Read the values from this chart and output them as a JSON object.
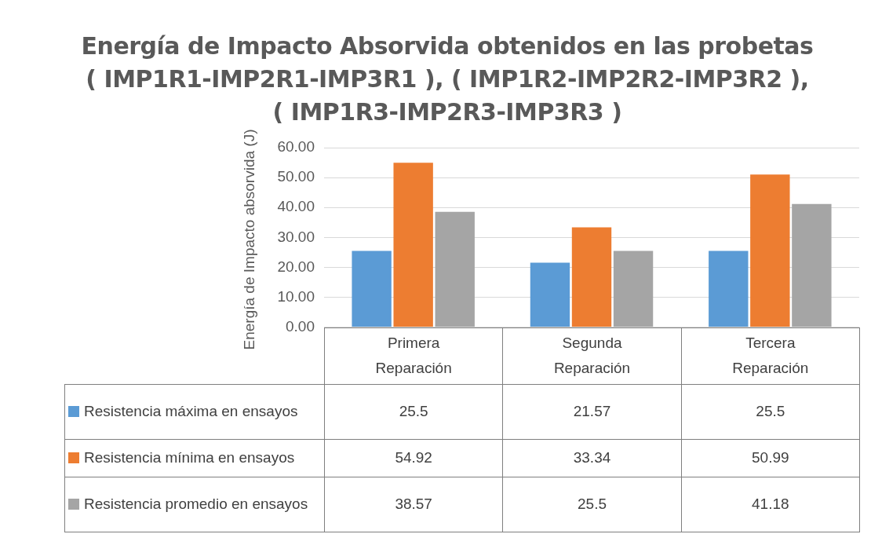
{
  "chart_data": {
    "type": "bar",
    "title": "Energía de Impacto Absorvida obtenidos en las probetas ( IMP1R1-IMP2R1-IMP3R1 ), ( IMP1R2-IMP2R2-IMP3R2 ), ( IMP1R3-IMP2R3-IMP3R3 )",
    "ylabel": "Energía de Impacto absorvida (J)",
    "categories": [
      "Primera Reparación",
      "Segunda Reparación",
      "Tercera Reparación"
    ],
    "series": [
      {
        "name": "Resistencia máxima en ensayos",
        "color": "#5b9bd5",
        "values": [
          25.5,
          21.57,
          25.5
        ]
      },
      {
        "name": "Resistencia mínima en ensayos",
        "color": "#ed7d31",
        "values": [
          54.92,
          33.34,
          50.99
        ]
      },
      {
        "name": "Resistencia promedio en ensayos",
        "color": "#a5a5a5",
        "values": [
          38.57,
          25.5,
          41.18
        ]
      }
    ],
    "ylim": [
      0,
      60
    ],
    "yticks": [
      {
        "value": 0,
        "label": "0.00"
      },
      {
        "value": 10,
        "label": "10.00"
      },
      {
        "value": 20,
        "label": "20.00"
      },
      {
        "value": 30,
        "label": "30.00"
      },
      {
        "value": 40,
        "label": "40.00"
      },
      {
        "value": 50,
        "label": "50.00"
      },
      {
        "value": 60,
        "label": "60.00"
      }
    ],
    "grid": "y",
    "legend": "bottom",
    "data_labels": true
  }
}
